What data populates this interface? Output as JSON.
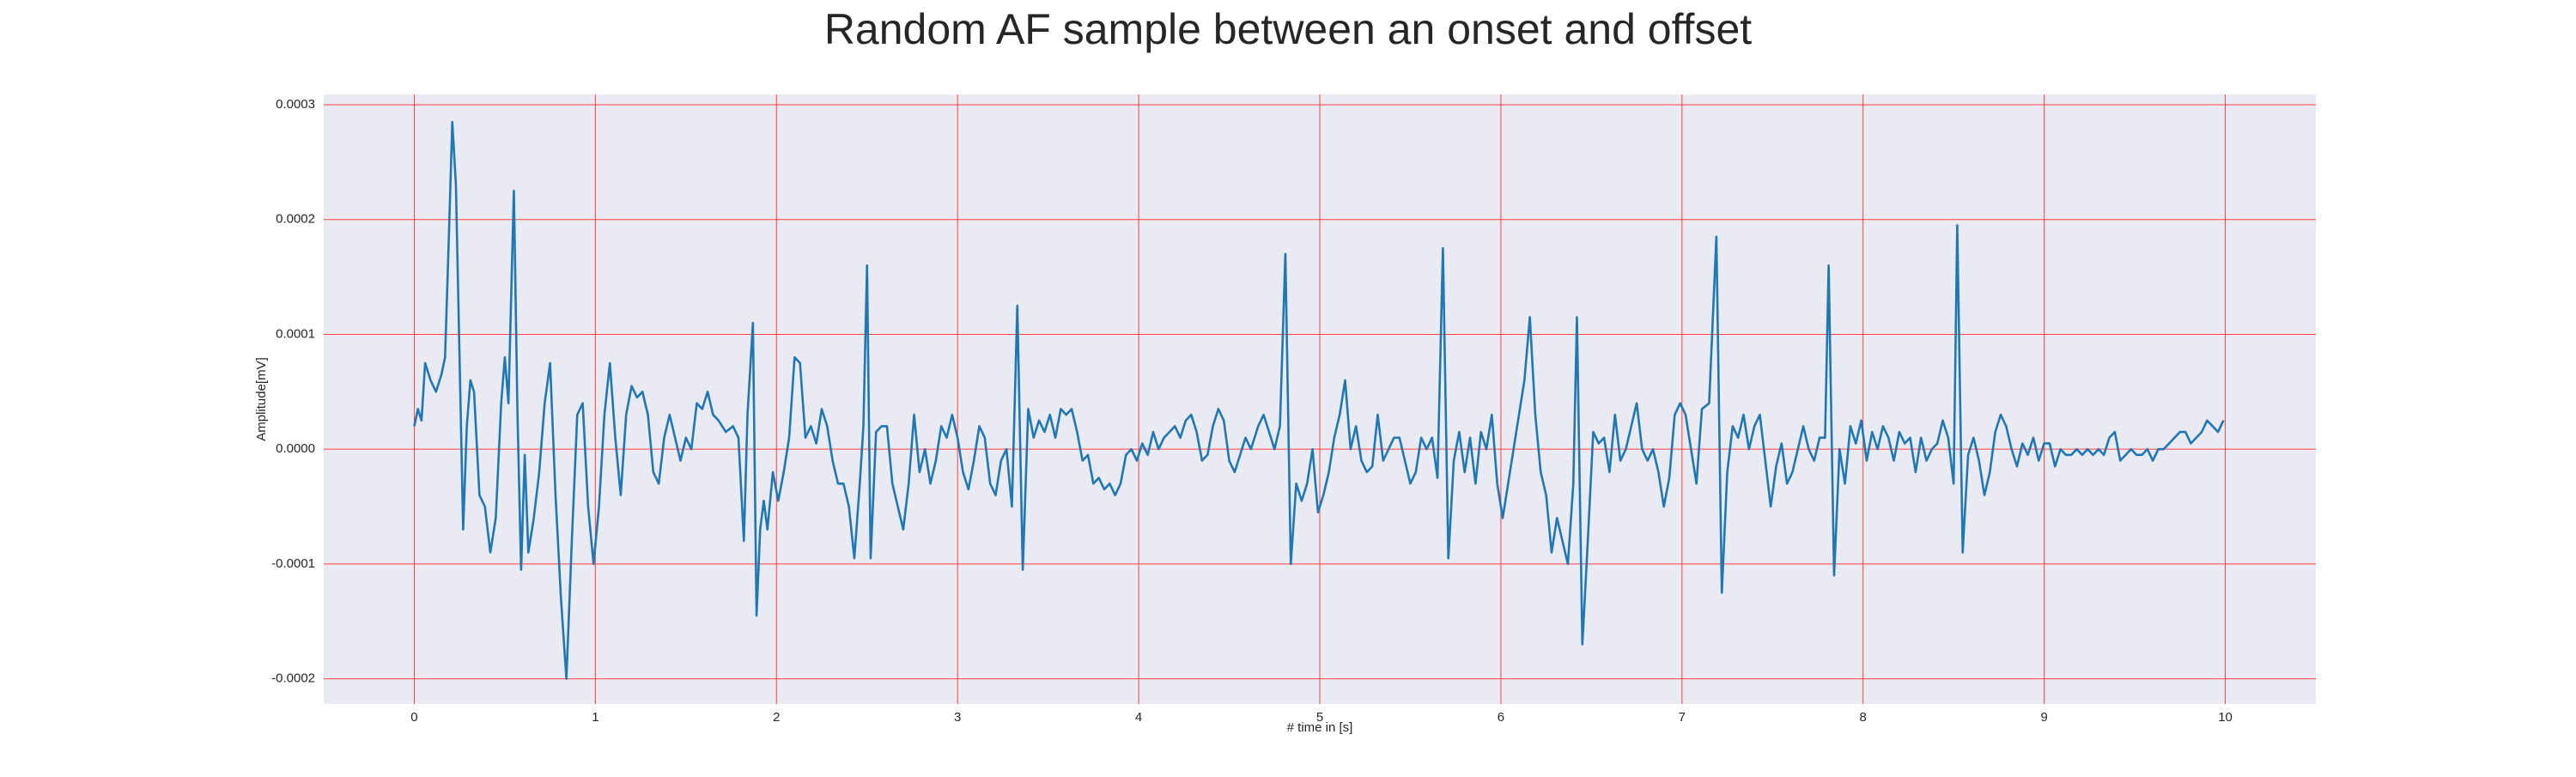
{
  "chart_data": {
    "type": "line",
    "title": "Random AF sample between an onset and offset",
    "xlabel": "# time in [s]",
    "ylabel": "Amplitude[mV]",
    "color": "#1f77b4",
    "grid": true,
    "xlim": [
      -0.5,
      10.5
    ],
    "ylim": [
      -0.000222,
      0.000309
    ],
    "xticks": [
      0,
      1,
      2,
      3,
      4,
      5,
      6,
      7,
      8,
      9,
      10
    ],
    "yticks": [
      0.0003,
      0.0002,
      0.0001,
      {
        "value": 0,
        "label": "0.0000"
      },
      -0.0001,
      -0.0002
    ],
    "x": [
      0.0,
      0.02,
      0.04,
      0.06,
      0.09,
      0.12,
      0.15,
      0.17,
      0.19,
      0.21,
      0.23,
      0.25,
      0.27,
      0.29,
      0.31,
      0.33,
      0.36,
      0.39,
      0.42,
      0.45,
      0.48,
      0.5,
      0.52,
      0.55,
      0.57,
      0.59,
      0.61,
      0.63,
      0.66,
      0.69,
      0.72,
      0.75,
      0.78,
      0.81,
      0.84,
      0.87,
      0.9,
      0.93,
      0.96,
      0.99,
      1.02,
      1.05,
      1.08,
      1.11,
      1.14,
      1.17,
      1.2,
      1.23,
      1.26,
      1.29,
      1.32,
      1.35,
      1.38,
      1.41,
      1.44,
      1.47,
      1.5,
      1.53,
      1.56,
      1.59,
      1.62,
      1.65,
      1.68,
      1.72,
      1.76,
      1.79,
      1.82,
      1.84,
      1.87,
      1.89,
      1.91,
      1.93,
      1.95,
      1.98,
      2.01,
      2.04,
      2.07,
      2.1,
      2.13,
      2.16,
      2.19,
      2.22,
      2.25,
      2.28,
      2.31,
      2.34,
      2.37,
      2.4,
      2.43,
      2.46,
      2.48,
      2.5,
      2.52,
      2.55,
      2.58,
      2.61,
      2.64,
      2.67,
      2.7,
      2.73,
      2.76,
      2.79,
      2.82,
      2.85,
      2.88,
      2.91,
      2.94,
      2.97,
      3.0,
      3.03,
      3.06,
      3.09,
      3.12,
      3.15,
      3.18,
      3.21,
      3.24,
      3.27,
      3.3,
      3.33,
      3.36,
      3.39,
      3.42,
      3.45,
      3.48,
      3.51,
      3.54,
      3.57,
      3.6,
      3.63,
      3.66,
      3.69,
      3.72,
      3.75,
      3.78,
      3.81,
      3.84,
      3.87,
      3.9,
      3.93,
      3.96,
      3.99,
      4.02,
      4.05,
      4.08,
      4.11,
      4.14,
      4.17,
      4.2,
      4.23,
      4.26,
      4.29,
      4.32,
      4.35,
      4.38,
      4.41,
      4.44,
      4.47,
      4.5,
      4.53,
      4.56,
      4.59,
      4.62,
      4.66,
      4.69,
      4.72,
      4.75,
      4.78,
      4.81,
      4.84,
      4.87,
      4.9,
      4.93,
      4.96,
      4.99,
      5.02,
      5.05,
      5.08,
      5.11,
      5.14,
      5.17,
      5.2,
      5.23,
      5.26,
      5.29,
      5.32,
      5.35,
      5.38,
      5.41,
      5.44,
      5.47,
      5.5,
      5.53,
      5.56,
      5.59,
      5.62,
      5.65,
      5.68,
      5.71,
      5.74,
      5.77,
      5.8,
      5.83,
      5.86,
      5.89,
      5.92,
      5.95,
      5.98,
      6.01,
      6.04,
      6.07,
      6.1,
      6.13,
      6.16,
      6.19,
      6.22,
      6.25,
      6.28,
      6.31,
      6.34,
      6.37,
      6.4,
      6.42,
      6.45,
      6.48,
      6.51,
      6.54,
      6.57,
      6.6,
      6.63,
      6.66,
      6.69,
      6.72,
      6.75,
      6.78,
      6.81,
      6.84,
      6.87,
      6.9,
      6.93,
      6.96,
      6.99,
      7.02,
      7.05,
      7.08,
      7.11,
      7.15,
      7.19,
      7.22,
      7.25,
      7.28,
      7.31,
      7.34,
      7.37,
      7.4,
      7.43,
      7.46,
      7.49,
      7.52,
      7.55,
      7.58,
      7.61,
      7.64,
      7.67,
      7.7,
      7.73,
      7.76,
      7.79,
      7.81,
      7.84,
      7.87,
      7.9,
      7.93,
      7.96,
      7.99,
      8.02,
      8.05,
      8.08,
      8.11,
      8.14,
      8.17,
      8.2,
      8.23,
      8.26,
      8.29,
      8.32,
      8.35,
      8.38,
      8.41,
      8.44,
      8.47,
      8.5,
      8.52,
      8.55,
      8.58,
      8.61,
      8.64,
      8.67,
      8.7,
      8.73,
      8.76,
      8.79,
      8.82,
      8.85,
      8.88,
      8.91,
      8.94,
      8.97,
      9.0,
      9.03,
      9.06,
      9.09,
      9.12,
      9.15,
      9.18,
      9.21,
      9.24,
      9.27,
      9.3,
      9.33,
      9.36,
      9.39,
      9.42,
      9.45,
      9.48,
      9.51,
      9.54,
      9.57,
      9.6,
      9.63,
      9.66,
      9.69,
      9.72,
      9.75,
      9.78,
      9.81,
      9.84,
      9.87,
      9.9,
      9.93,
      9.96,
      9.99
    ],
    "values": [
      2e-05,
      3.5e-05,
      2.5e-05,
      7.5e-05,
      6e-05,
      5e-05,
      6.5e-05,
      8e-05,
      0.00018,
      0.000285,
      0.00023,
      8e-05,
      -7e-05,
      2e-05,
      6e-05,
      5e-05,
      -4e-05,
      -5e-05,
      -9e-05,
      -6e-05,
      4e-05,
      8e-05,
      4e-05,
      0.000225,
      3e-05,
      -0.000105,
      -5e-06,
      -9e-05,
      -6e-05,
      -2e-05,
      4e-05,
      7.5e-05,
      -4e-05,
      -0.00013,
      -0.0002,
      -8e-05,
      3e-05,
      4e-05,
      -5e-05,
      -0.0001,
      -5e-05,
      3e-05,
      7.5e-05,
      1e-05,
      -4e-05,
      3e-05,
      5.5e-05,
      4.5e-05,
      5e-05,
      3e-05,
      -2e-05,
      -3e-05,
      1e-05,
      3e-05,
      1e-05,
      -1e-05,
      1e-05,
      0,
      4e-05,
      3.5e-05,
      5e-05,
      3e-05,
      2.5e-05,
      1.5e-05,
      2e-05,
      1e-05,
      -8e-05,
      3e-05,
      0.00011,
      -0.000145,
      -7e-05,
      -4.5e-05,
      -7e-05,
      -2e-05,
      -4.5e-05,
      -2e-05,
      1e-05,
      8e-05,
      7.5e-05,
      1e-05,
      2e-05,
      5e-06,
      3.5e-05,
      2e-05,
      -1e-05,
      -3e-05,
      -3e-05,
      -5e-05,
      -9.5e-05,
      -3e-05,
      2e-05,
      0.00016,
      -9.5e-05,
      1.5e-05,
      2e-05,
      2e-05,
      -3e-05,
      -5e-05,
      -7e-05,
      -3e-05,
      3e-05,
      -2e-05,
      0,
      -3e-05,
      -1e-05,
      2e-05,
      1e-05,
      3e-05,
      1e-05,
      -2e-05,
      -3.5e-05,
      -1e-05,
      2e-05,
      1e-05,
      -3e-05,
      -4e-05,
      -1e-05,
      0,
      -5e-05,
      0.000125,
      -0.000105,
      3.5e-05,
      1e-05,
      2.5e-05,
      1.5e-05,
      3e-05,
      1e-05,
      3.5e-05,
      3e-05,
      3.5e-05,
      1.5e-05,
      -1e-05,
      -5e-06,
      -3e-05,
      -2.5e-05,
      -3.5e-05,
      -3e-05,
      -4e-05,
      -3e-05,
      -5e-06,
      0,
      -1e-05,
      5e-06,
      -5e-06,
      1.5e-05,
      0,
      1e-05,
      1.5e-05,
      2e-05,
      1e-05,
      2.5e-05,
      3e-05,
      1.5e-05,
      -1e-05,
      -5e-06,
      2e-05,
      3.5e-05,
      2.5e-05,
      -1e-05,
      -2e-05,
      -5e-06,
      1e-05,
      0,
      2e-05,
      3e-05,
      1.5e-05,
      0,
      2e-05,
      0.00017,
      -0.0001,
      -3e-05,
      -4.5e-05,
      -3e-05,
      0,
      -5.5e-05,
      -4e-05,
      -2e-05,
      1e-05,
      3e-05,
      6e-05,
      0,
      2e-05,
      -1e-05,
      -2e-05,
      -1.5e-05,
      3e-05,
      -1e-05,
      0,
      1e-05,
      1e-05,
      -1e-05,
      -3e-05,
      -2e-05,
      1e-05,
      0,
      1e-05,
      -2.5e-05,
      0.000175,
      -9.5e-05,
      -1e-05,
      1.5e-05,
      -2e-05,
      1e-05,
      -3e-05,
      1.5e-05,
      0,
      3e-05,
      -3e-05,
      -6e-05,
      -3e-05,
      0,
      3e-05,
      6e-05,
      0.000115,
      3e-05,
      -2e-05,
      -4e-05,
      -9e-05,
      -6e-05,
      -8e-05,
      -0.0001,
      -3e-05,
      0.000115,
      -0.00017,
      -8e-05,
      1.5e-05,
      5e-06,
      1e-05,
      -2e-05,
      3e-05,
      -1e-05,
      0,
      2e-05,
      4e-05,
      0,
      -1e-05,
      0,
      -2e-05,
      -5e-05,
      -2.5e-05,
      3e-05,
      4e-05,
      3e-05,
      0,
      -3e-05,
      3.5e-05,
      4e-05,
      0.000185,
      -0.000125,
      -2e-05,
      2e-05,
      1e-05,
      3e-05,
      0,
      2e-05,
      3e-05,
      -1e-05,
      -5e-05,
      -1.5e-05,
      5e-06,
      -3e-05,
      -2e-05,
      0,
      2e-05,
      0,
      -1e-05,
      1e-05,
      1e-05,
      0.00016,
      -0.00011,
      0,
      -3e-05,
      2e-05,
      5e-06,
      2.5e-05,
      -1e-05,
      1.5e-05,
      0,
      2e-05,
      1e-05,
      -1e-05,
      1.5e-05,
      5e-06,
      1e-05,
      -2e-05,
      1e-05,
      -1e-05,
      0,
      5e-06,
      2.5e-05,
      1e-05,
      -3e-05,
      0.000195,
      -9e-05,
      -5e-06,
      1e-05,
      -1e-05,
      -4e-05,
      -2e-05,
      1.5e-05,
      3e-05,
      2e-05,
      0,
      -1.5e-05,
      5e-06,
      -5e-06,
      1e-05,
      -1e-05,
      5e-06,
      5e-06,
      -1.5e-05,
      0,
      -5e-06,
      -5e-06,
      0,
      -5e-06,
      0,
      -5e-06,
      0,
      -5e-06,
      1e-05,
      1.5e-05,
      -1e-05,
      -5e-06,
      0,
      -5e-06,
      -5e-06,
      0,
      -1e-05,
      0,
      0,
      5e-06,
      1e-05,
      1.5e-05,
      1.5e-05,
      5e-06,
      1e-05,
      1.5e-05,
      2.5e-05,
      2e-05,
      1.5e-05,
      2.5e-05
    ]
  }
}
